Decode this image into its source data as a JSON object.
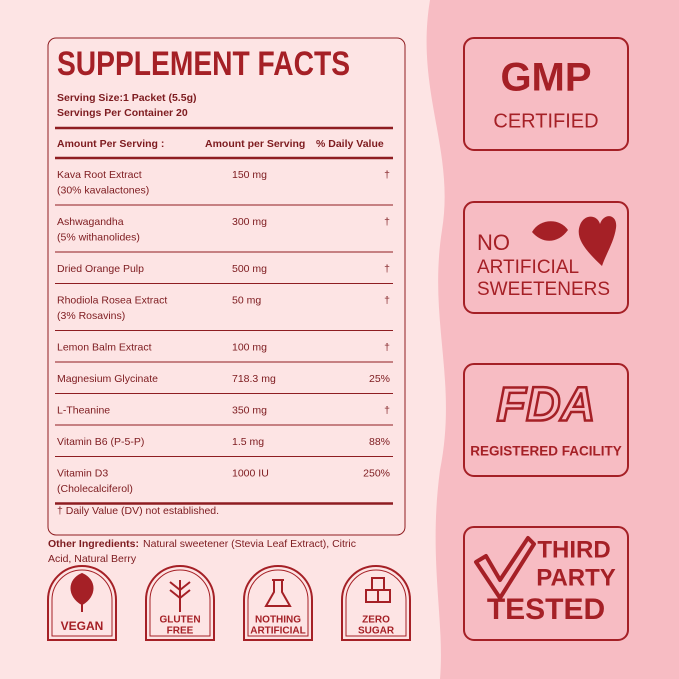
{
  "panel": {
    "title": "SUPPLEMENT FACTS",
    "serving_size": "Serving Size:1 Packet (5.5g)",
    "servings_per_container": "Servings Per Container 20",
    "header": [
      "Amount Per Serving :",
      "Amount per Serving",
      "% Daily Value"
    ],
    "rows": [
      {
        "name": [
          "Kava Root Extract",
          "(30% kavalactones)"
        ],
        "amount": "150 mg",
        "dv": "†"
      },
      {
        "name": [
          "Ashwagandha",
          "(5% withanolides)"
        ],
        "amount": "300 mg",
        "dv": "†"
      },
      {
        "name": [
          "Dried Orange Pulp"
        ],
        "amount": "500 mg",
        "dv": "†"
      },
      {
        "name": [
          "Rhodiola Rosea Extract",
          "(3% Rosavins)"
        ],
        "amount": "50 mg",
        "dv": "†"
      },
      {
        "name": [
          "Lemon Balm Extract"
        ],
        "amount": "100 mg",
        "dv": "†"
      },
      {
        "name": [
          "Magnesium Glycinate"
        ],
        "amount": "718.3 mg",
        "dv": "25%"
      },
      {
        "name": [
          "L-Theanine"
        ],
        "amount": "350 mg",
        "dv": "†"
      },
      {
        "name": [
          "Vitamin B6 (P-5-P)"
        ],
        "amount": "1.5 mg",
        "dv": "88%"
      },
      {
        "name": [
          "Vitamin D3",
          "(Cholecalciferol)"
        ],
        "amount": "1000 IU",
        "dv": "250%"
      }
    ],
    "footnote": "† Daily Value (DV) not established."
  },
  "other_ingredients": {
    "label": "Other Ingredients:",
    "text": [
      "Natural sweetener (Stevia Leaf Extract), Citric",
      "Acid, Natural Berry"
    ]
  },
  "icons": [
    {
      "label": [
        "VEGAN"
      ]
    },
    {
      "label": [
        "GLUTEN",
        "FREE"
      ]
    },
    {
      "label": [
        "NOTHING",
        "ARTIFICIAL"
      ]
    },
    {
      "label": [
        "ZERO",
        "SUGAR"
      ]
    }
  ],
  "badges": [
    {
      "label": [
        "GMP",
        "CERTIFIED"
      ]
    },
    {
      "label": [
        "NO",
        "ARTIFICIAL",
        "SWEETENERS"
      ]
    },
    {
      "label": [
        "FDA",
        "REGISTERED FACILITY"
      ]
    },
    {
      "label": [
        "THIRD",
        "PARTY",
        "TESTED"
      ]
    }
  ]
}
